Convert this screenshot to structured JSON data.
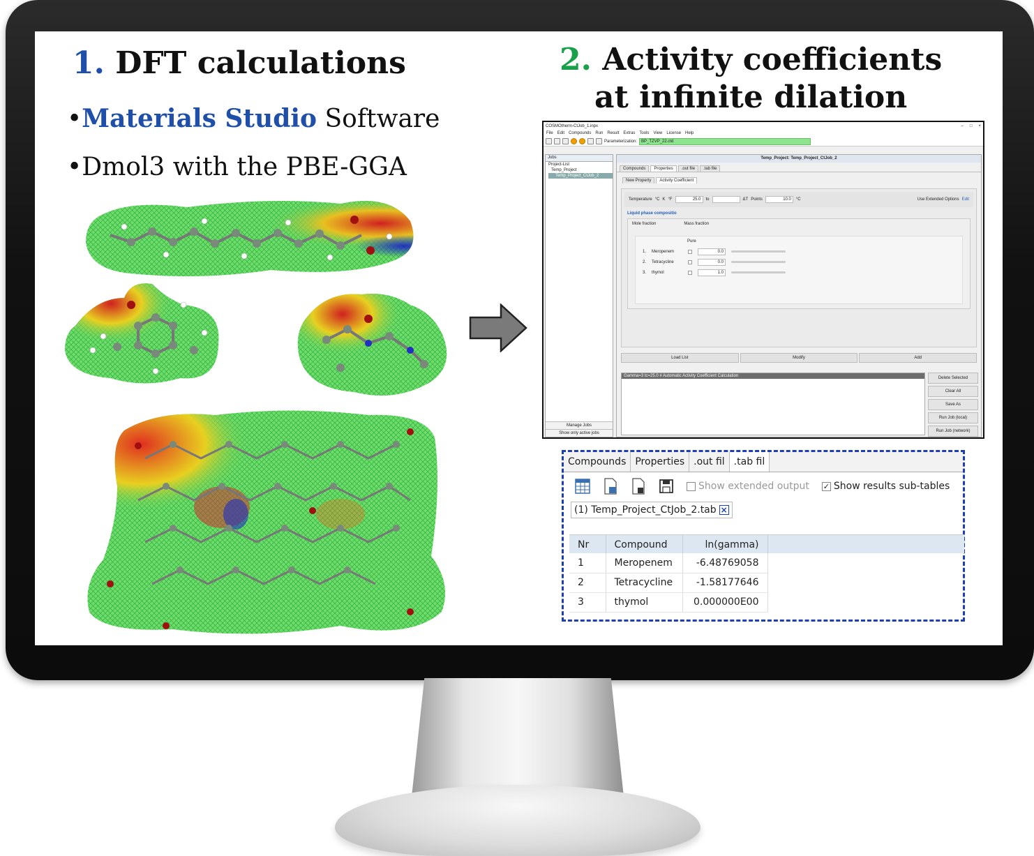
{
  "left_panel": {
    "heading_number": "1.",
    "heading_text": "DFT calculations",
    "bullet_symbol": "•",
    "bullet1_highlight": "Materials Studio",
    "bullet1_rest": " Software",
    "bullet2": "Dmol3 with the PBE-GGA"
  },
  "right_panel": {
    "heading_number": "2.",
    "heading_line1": "Activity coefficients",
    "heading_line2": "at infinite dilation"
  },
  "app": {
    "window_title": "COSMOtherm-CtJob_1.inpx",
    "window_controls": [
      "–",
      "□",
      "×"
    ],
    "menu": [
      "File",
      "Edit",
      "Compounds",
      "Run",
      "Result",
      "Extras",
      "Tools",
      "View",
      "License",
      "Help"
    ],
    "parameterization_label": "Parameterization:",
    "parameterization_value": "BP_TZVP_22.ctd",
    "jobs_tab": "Jobs",
    "tree": [
      "Project-List",
      "Temp_Project",
      "Temp_Project_CtJob_2"
    ],
    "manage_jobs": "Manage Jobs",
    "show_only_active": "Show only active jobs",
    "project_header": "Temp_Project: Temp_Project_CtJob_2",
    "tabs": [
      "Compounds",
      "Properties",
      ".out file",
      ".tab file"
    ],
    "subtabs": [
      "New Property",
      "Activity Coefficient"
    ],
    "temperature_label": "Temperature",
    "unit_c": "°C",
    "unit_k": "K",
    "unit_f": "°F",
    "temp_value": "25.0",
    "to_label": "to",
    "delta_t": "ΔT",
    "points": "Points",
    "points_value": "10.0",
    "celsius": "°C",
    "use_extended": "Use Extended Options",
    "edit_link": "Edit",
    "liquid_phase": "Liquid phase compositio",
    "mole_fraction": "Mole fraction",
    "mass_fraction": "Mass fraction",
    "pure_label": "Pure",
    "compounds": [
      {
        "idx": "1.",
        "name": "Meropenem",
        "value": "0.0"
      },
      {
        "idx": "2.",
        "name": "Tetracycline",
        "value": "0.0"
      },
      {
        "idx": "3.",
        "name": "thymol",
        "value": "1.0"
      }
    ],
    "actions": [
      "Load List",
      "Modify",
      "Add"
    ],
    "log_line": "Gamma=3 tc=25.0 # Automatic Activity Coefficient Calculation",
    "right_buttons": [
      "Delete Selected",
      "Clear All",
      "Save As",
      "Run Job (local)",
      "Run Job (network)"
    ]
  },
  "zoom": {
    "tabs": [
      "Compounds",
      "Properties",
      ".out fil",
      ".tab fil"
    ],
    "show_extended": "Show extended output",
    "show_subtables": "Show results sub-tables",
    "result_tab": "(1) Temp_Project_CtJob_2.tab",
    "close_symbol": "×",
    "check_symbol": "✓",
    "columns": [
      "Nr",
      "Compound",
      "ln(gamma)"
    ],
    "rows": [
      {
        "nr": "1",
        "compound": "Meropenem",
        "value": "-6.48769058"
      },
      {
        "nr": "2",
        "compound": "Tetracycline",
        "value": "-1.58177646"
      },
      {
        "nr": "3",
        "compound": "thymol",
        "value": "0.000000E00"
      }
    ]
  },
  "colors": {
    "blue_accent": "#1f4fa8",
    "green_accent": "#1aa04a",
    "dashed_border": "#1d3fb5",
    "param_field": "#8ee38e"
  }
}
